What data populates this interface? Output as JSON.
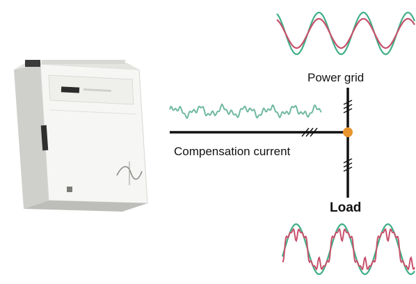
{
  "labels": {
    "power_grid": "Power grid",
    "compensation_current": "Compensation current",
    "load": "Load"
  },
  "colors": {
    "background": "#ffffff",
    "line": "#111111",
    "junction_dot": "#e8952e",
    "wave_green": "#3fae86",
    "wave_red": "#c8506a",
    "compensation_wave": "#6fb8a0",
    "device_body": "#f4f4f2",
    "device_shadow": "#c9c9c6"
  },
  "icons": {
    "device": "active-power-filter-device",
    "grid_wave": "sine-wave-icon",
    "load_wave": "distorted-wave-icon",
    "junction": "junction-dot-icon"
  }
}
